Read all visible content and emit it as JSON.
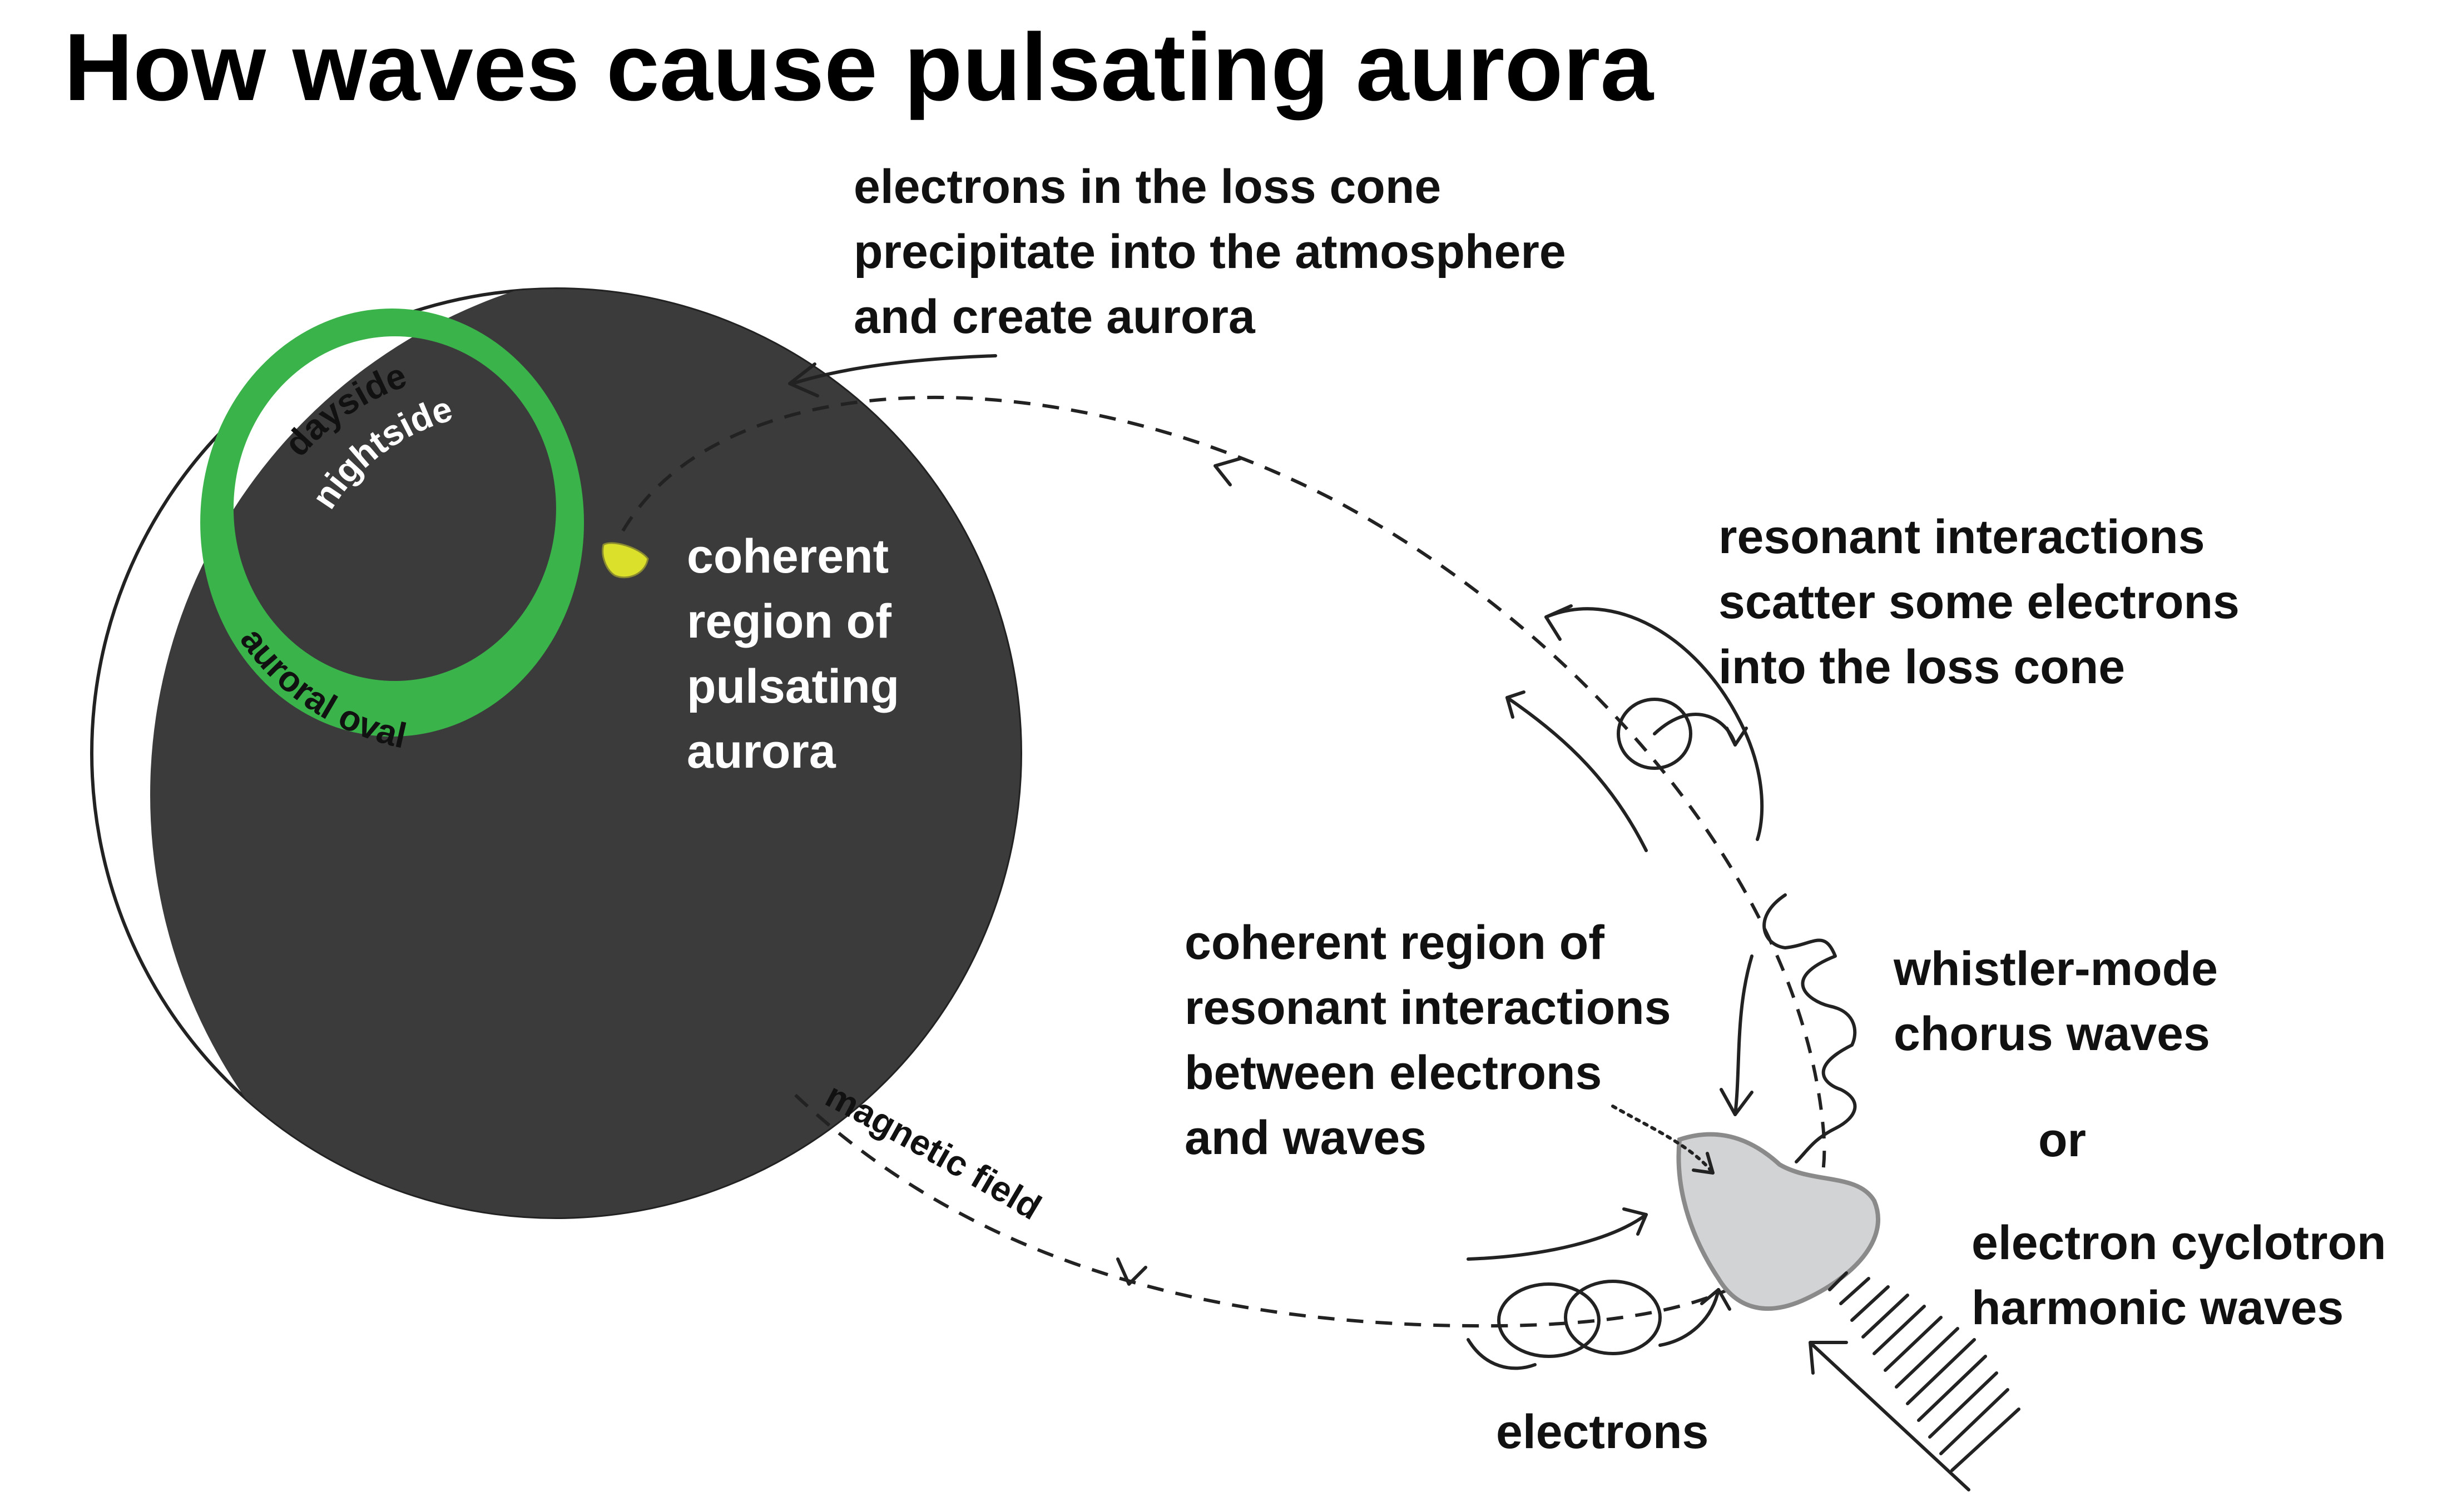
{
  "title": "How waves cause pulsating aurora",
  "colors": {
    "earth": "#3b3b3b",
    "auroral_oval": "#3ab44a",
    "pulsating_patch": "#dbe02a",
    "interaction_region": "#d2d3d5",
    "interaction_region_stroke": "#8a8a8a"
  },
  "labels": {
    "precipitate": [
      "electrons in the loss cone",
      "precipitate into the atmosphere",
      "and create aurora"
    ],
    "scatter": [
      "resonant interactions",
      "scatter some electrons",
      "into the loss cone"
    ],
    "coherent_region": [
      "coherent region of",
      "resonant interactions",
      "between electrons",
      "and waves"
    ],
    "whistler": [
      "whistler-mode",
      "chorus waves"
    ],
    "or": "or",
    "ech": [
      "electron cyclotron",
      "harmonic waves"
    ],
    "electrons": "electrons",
    "magnetic_field": "magnetic field",
    "pulsating_aurora": [
      "coherent",
      "region of",
      "pulsating",
      "aurora"
    ],
    "dayside": "dayside",
    "nightside": "nightside",
    "auroral_oval": "auroral oval"
  },
  "icons": [
    "arrow-icon",
    "electron-gyration-loop-icon",
    "wave-packet-icon"
  ]
}
